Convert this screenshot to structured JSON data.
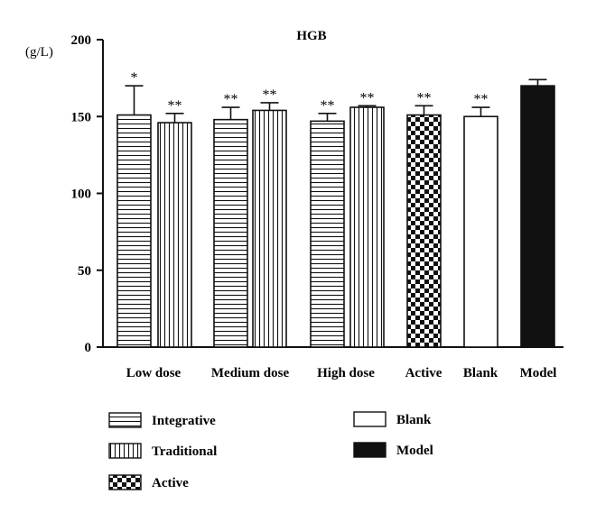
{
  "chart_data": {
    "type": "bar",
    "title": "HGB",
    "ylabel": "(g/L)",
    "xlabel": "",
    "ylim": [
      0,
      200
    ],
    "yticks": [
      0,
      50,
      100,
      150,
      200
    ],
    "grid": false,
    "legend_position": "bottom",
    "categories": [
      "Low dose",
      "Medium dose",
      "High dose",
      "Active",
      "Blank",
      "Model"
    ],
    "bars": [
      {
        "category": "Low dose",
        "series": "Integrative",
        "value": 151,
        "error": 19,
        "significance": "*"
      },
      {
        "category": "Low dose",
        "series": "Traditional",
        "value": 146,
        "error": 6,
        "significance": "**"
      },
      {
        "category": "Medium dose",
        "series": "Integrative",
        "value": 148,
        "error": 8,
        "significance": "**"
      },
      {
        "category": "Medium dose",
        "series": "Traditional",
        "value": 154,
        "error": 5,
        "significance": "**"
      },
      {
        "category": "High dose",
        "series": "Integrative",
        "value": 147,
        "error": 5,
        "significance": "**"
      },
      {
        "category": "High dose",
        "series": "Traditional",
        "value": 156,
        "error": 1,
        "significance": "**"
      },
      {
        "category": "Active",
        "series": "Active",
        "value": 151,
        "error": 6,
        "significance": "**"
      },
      {
        "category": "Blank",
        "series": "Blank",
        "value": 150,
        "error": 6,
        "significance": "**"
      },
      {
        "category": "Model",
        "series": "Model",
        "value": 170,
        "error": 4,
        "significance": ""
      }
    ],
    "legend": [
      {
        "name": "Integrative",
        "pattern": "hstripes"
      },
      {
        "name": "Traditional",
        "pattern": "vstripes"
      },
      {
        "name": "Active",
        "pattern": "checker"
      },
      {
        "name": "Blank",
        "pattern": "white"
      },
      {
        "name": "Model",
        "pattern": "black"
      }
    ]
  }
}
